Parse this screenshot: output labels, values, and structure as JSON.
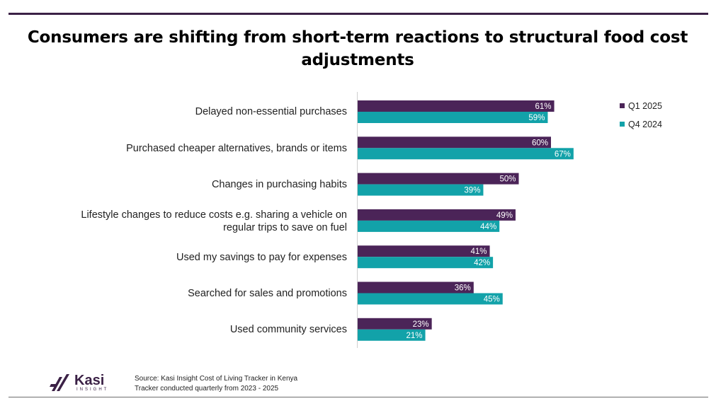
{
  "title": "Consumers are shifting from short-term reactions to structural food cost adjustments",
  "chart_data": {
    "type": "bar",
    "orientation": "horizontal",
    "categories": [
      "Delayed non-essential purchases",
      "Purchased cheaper alternatives, brands or items",
      "Changes in purchasing habits",
      "Lifestyle changes to reduce costs e.g. sharing a vehicle on regular trips to save on fuel",
      "Used my savings to pay for expenses",
      "Searched for sales and promotions",
      "Used community services"
    ],
    "series": [
      {
        "name": "Q1 2025",
        "color": "#4b2458",
        "values": [
          61,
          60,
          50,
          49,
          41,
          36,
          23
        ]
      },
      {
        "name": "Q4 2024",
        "color": "#12a2a9",
        "values": [
          59,
          67,
          39,
          44,
          42,
          45,
          21
        ]
      }
    ],
    "value_suffix": "%",
    "xlim": [
      0,
      100
    ],
    "legend_position": "top-right",
    "grid": false
  },
  "labels": {
    "cat0": "Delayed non-essential purchases",
    "cat1": "Purchased cheaper alternatives, brands or items",
    "cat2": "Changes in purchasing habits",
    "cat3a": "Lifestyle changes to reduce costs e.g. sharing a vehicle on",
    "cat3b": "regular trips to save on fuel",
    "cat4": "Used my savings to pay for expenses",
    "cat5": "Searched for sales and promotions",
    "cat6": "Used community services"
  },
  "legend": {
    "q1": "Q1 2025",
    "q4": "Q4 2024"
  },
  "footer": {
    "logo_name": "Kasi",
    "logo_sub": "INSIGHT",
    "source_line1": "Source: Kasi Insight Cost of Living Tracker in  Kenya",
    "source_line2": "Tracker conducted  quarterly from 2023 - 2025"
  },
  "colors": {
    "primary": "#4b2458",
    "secondary": "#12a2a9",
    "rule": "#3b2146"
  }
}
